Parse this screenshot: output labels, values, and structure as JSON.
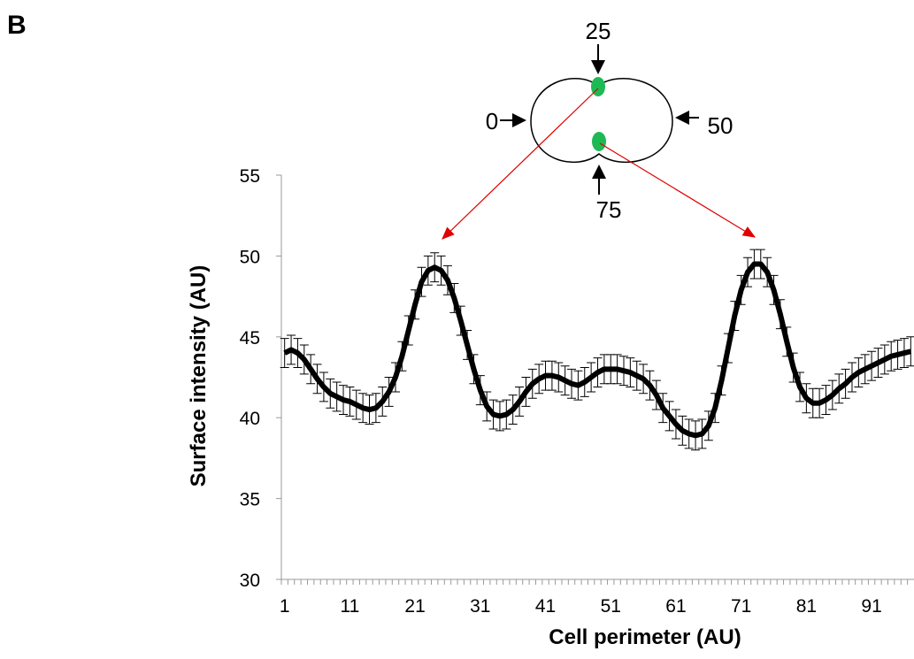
{
  "chart_data": {
    "type": "line",
    "panel_label": "B",
    "x_label": "Cell perimeter (AU)",
    "y_label": "Surface intensity (AU)",
    "annotations": [
      "25",
      "0",
      "50",
      "75"
    ],
    "x": [
      1,
      2,
      3,
      4,
      5,
      6,
      7,
      8,
      9,
      10,
      11,
      12,
      13,
      14,
      15,
      16,
      17,
      18,
      19,
      20,
      21,
      22,
      23,
      24,
      25,
      26,
      27,
      28,
      29,
      30,
      31,
      32,
      33,
      34,
      35,
      36,
      37,
      38,
      39,
      40,
      41,
      42,
      43,
      44,
      45,
      46,
      47,
      48,
      49,
      50,
      51,
      52,
      53,
      54,
      55,
      56,
      57,
      58,
      59,
      60,
      61,
      62,
      63,
      64,
      65,
      66,
      67,
      68,
      69,
      70,
      71,
      72,
      73,
      74,
      75,
      76,
      77,
      78,
      79,
      80,
      81,
      82,
      83,
      84,
      85,
      86,
      87,
      88,
      89,
      90,
      91,
      92,
      93,
      94,
      95,
      96,
      97
    ],
    "series": [
      {
        "color": "#000000",
        "error": 0.9,
        "values": [
          44,
          44.2,
          44,
          43.6,
          43,
          42.4,
          41.9,
          41.5,
          41.3,
          41.1,
          41,
          40.8,
          40.6,
          40.5,
          40.6,
          41,
          41.6,
          42.5,
          43.8,
          45.4,
          47,
          48.4,
          49.1,
          49.3,
          49.1,
          48.5,
          47.4,
          46,
          44.5,
          43,
          41.7,
          40.7,
          40.2,
          40.1,
          40.2,
          40.5,
          41,
          41.6,
          42.1,
          42.4,
          42.6,
          42.6,
          42.5,
          42.3,
          42.1,
          42,
          42.2,
          42.5,
          42.8,
          43,
          43,
          43,
          42.9,
          42.8,
          42.6,
          42.4,
          42,
          41.4,
          40.6,
          40.1,
          39.6,
          39.2,
          39,
          38.9,
          39,
          39.5,
          40.6,
          42.3,
          44.3,
          46.3,
          47.9,
          49,
          49.5,
          49.5,
          49,
          47.9,
          46.4,
          44.7,
          43.1,
          41.9,
          41.2,
          40.9,
          40.9,
          41.1,
          41.4,
          41.8,
          42.1,
          42.5,
          42.8,
          43,
          43.2,
          43.4,
          43.6,
          43.8,
          43.9,
          44,
          44.1
        ]
      }
    ],
    "xlim": [
      0.5,
      97.5
    ],
    "xticks": [
      1,
      11,
      21,
      31,
      41,
      51,
      61,
      71,
      81,
      91
    ],
    "ylim": [
      30,
      55
    ],
    "yticks": [
      30,
      35,
      40,
      45,
      50,
      55
    ]
  }
}
